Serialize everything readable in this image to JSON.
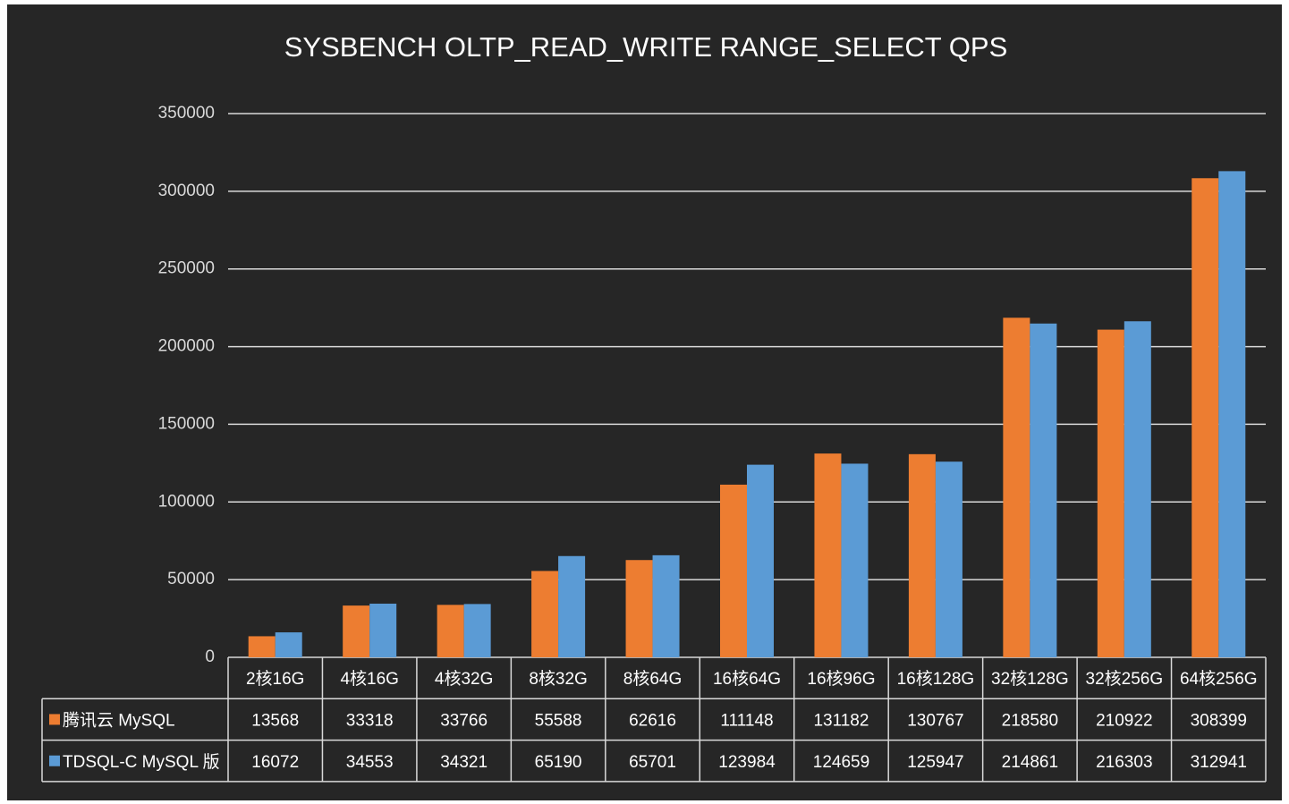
{
  "chart_data": {
    "type": "bar",
    "title": "SYSBENCH OLTP_READ_WRITE RANGE_SELECT QPS",
    "categories": [
      "2核16G",
      "4核16G",
      "4核32G",
      "8核32G",
      "8核64G",
      "16核64G",
      "16核96G",
      "16核128G",
      "32核128G",
      "32核256G",
      "64核256G"
    ],
    "series": [
      {
        "name": "腾讯云 MySQL",
        "color": "#ed7d31",
        "values": [
          13568,
          33318,
          33766,
          55588,
          62616,
          111148,
          131182,
          130767,
          218580,
          210922,
          308399
        ]
      },
      {
        "name": "TDSQL-C MySQL 版",
        "color": "#5b9bd5",
        "values": [
          16072,
          34553,
          34321,
          65190,
          65701,
          123984,
          124659,
          125947,
          214861,
          216303,
          312941
        ]
      }
    ],
    "ylim": [
      0,
      350000
    ],
    "yticks": [
      0,
      50000,
      100000,
      150000,
      200000,
      250000,
      300000,
      350000
    ],
    "grid": true
  }
}
